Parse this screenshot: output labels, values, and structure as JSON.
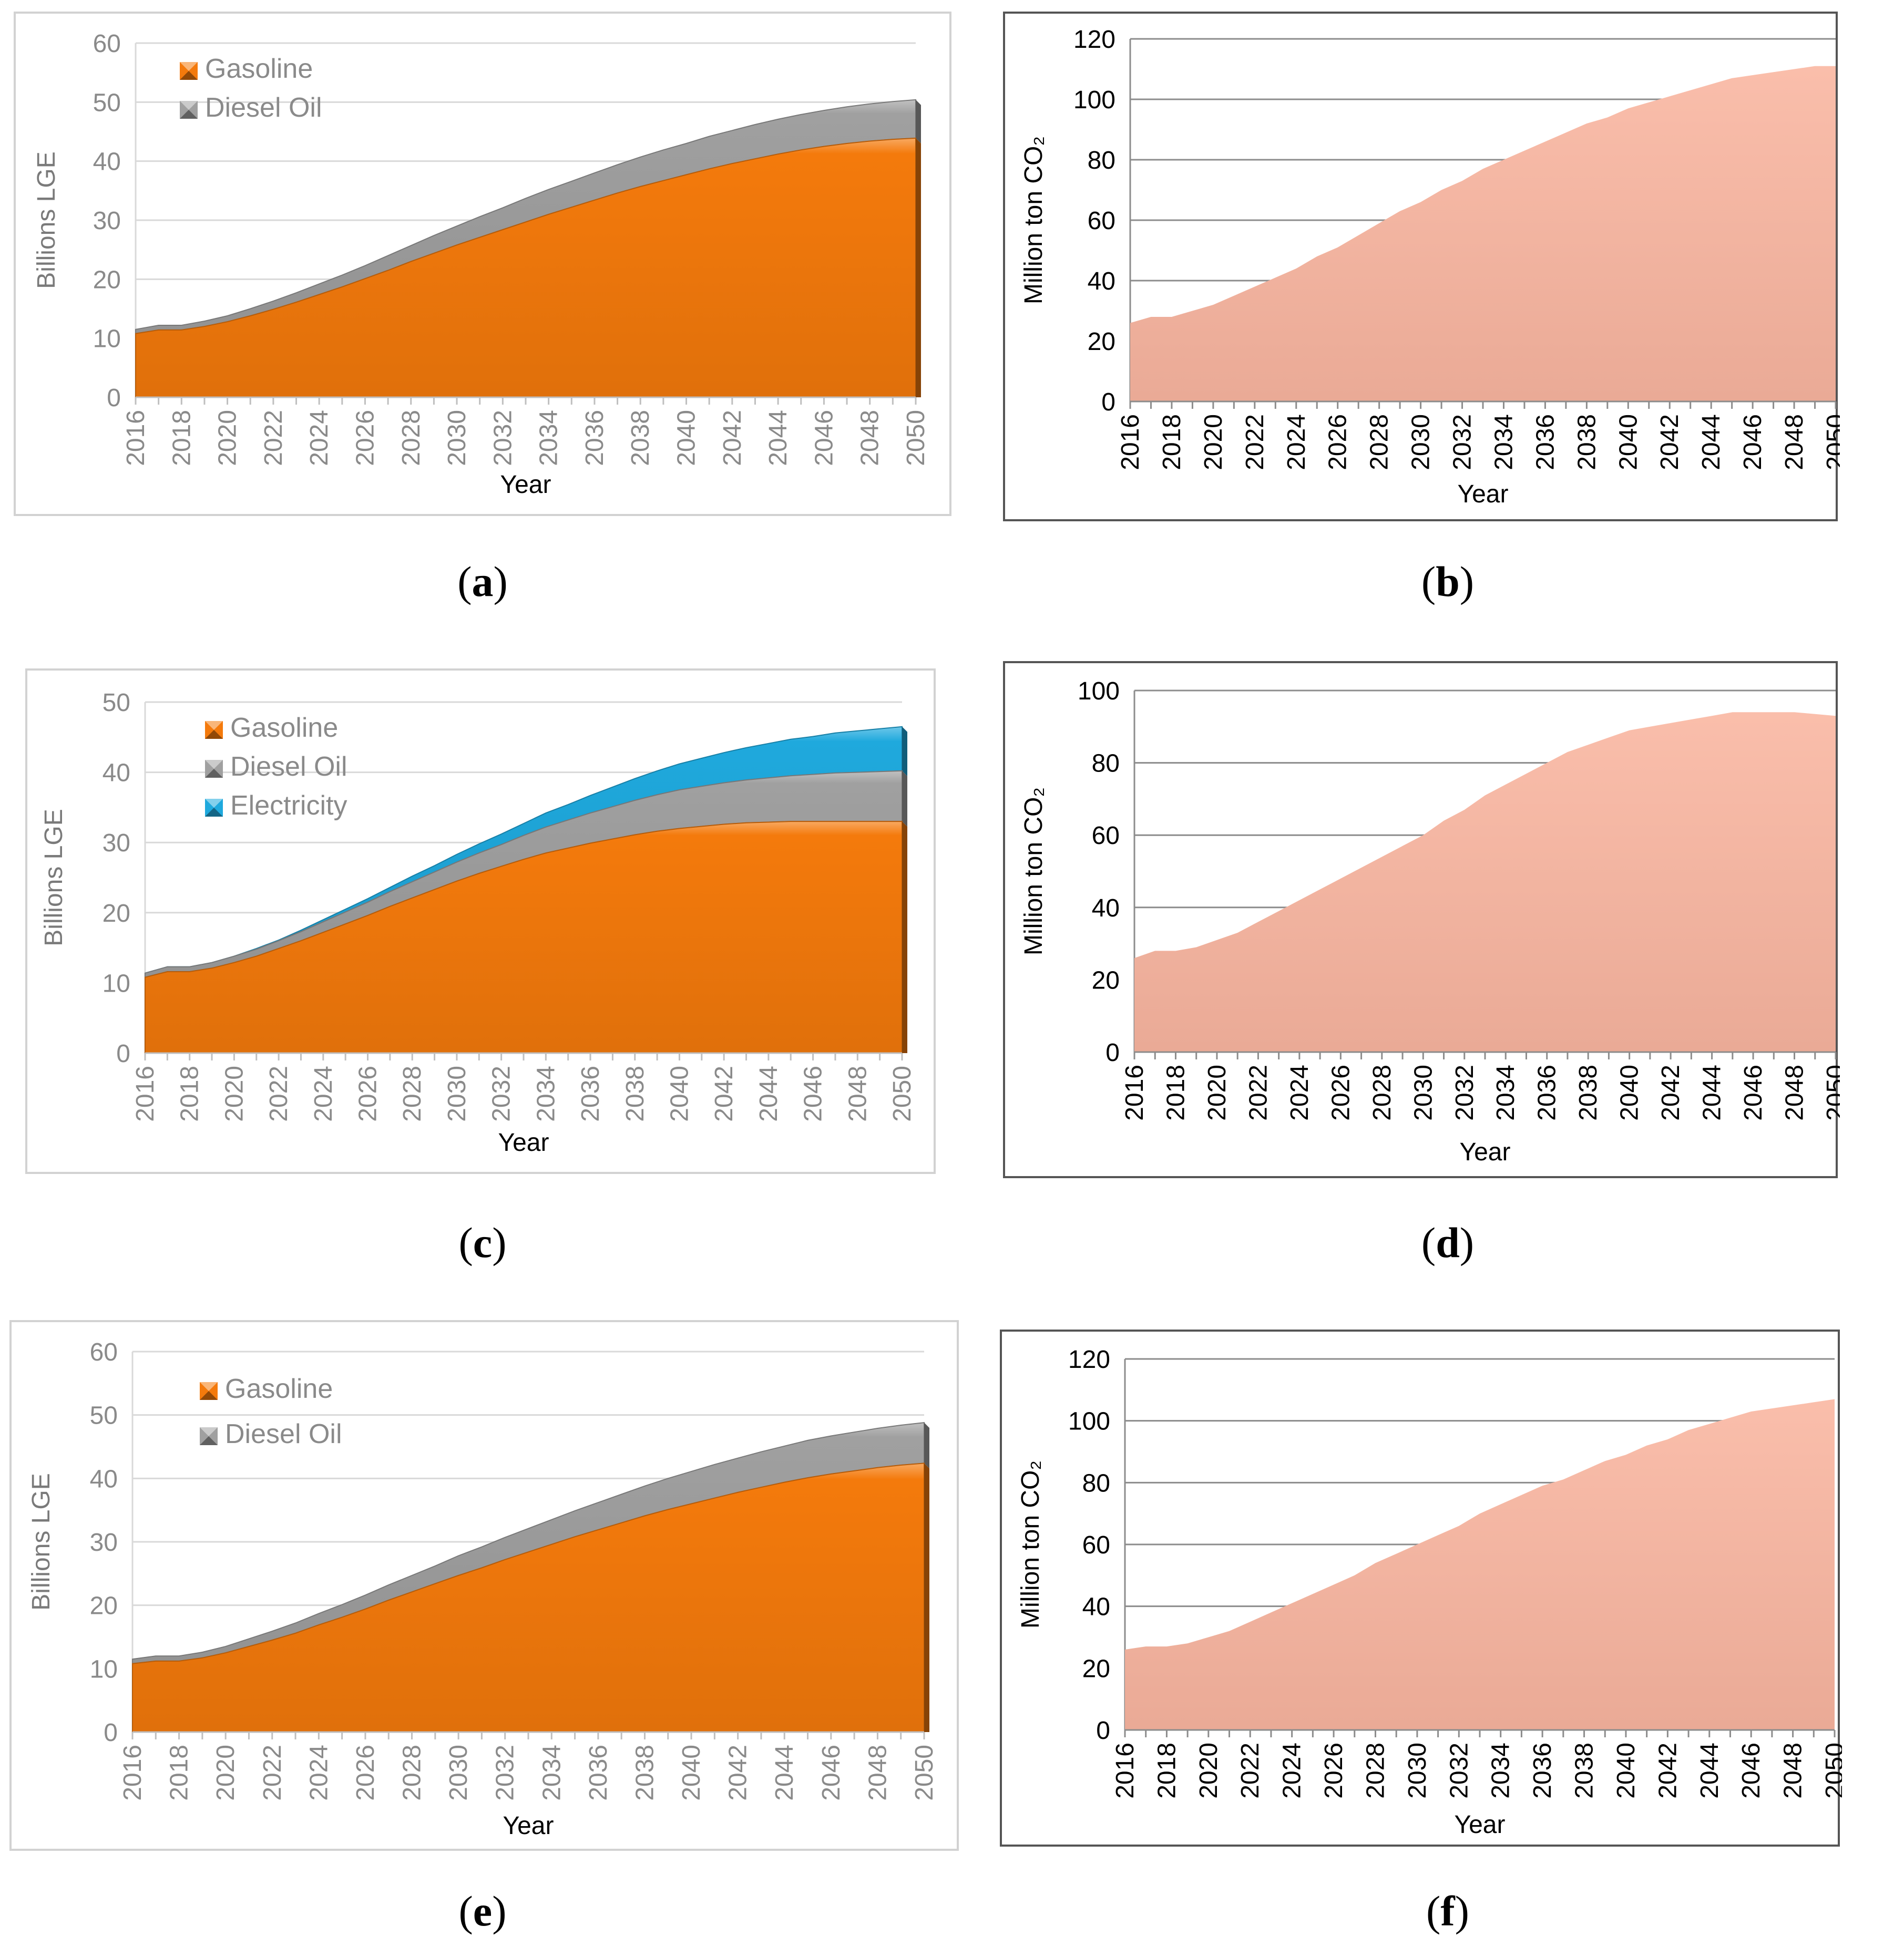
{
  "panels": [
    {
      "id": "a",
      "caption_letter": "a",
      "chart_data": {
        "type": "area",
        "stacked": true,
        "x": [
          2016,
          2017,
          2018,
          2019,
          2020,
          2021,
          2022,
          2023,
          2024,
          2025,
          2026,
          2027,
          2028,
          2029,
          2030,
          2031,
          2032,
          2033,
          2034,
          2035,
          2036,
          2037,
          2038,
          2039,
          2040,
          2041,
          2042,
          2043,
          2044,
          2045,
          2046,
          2047,
          2048,
          2049,
          2050
        ],
        "x_tick_labels": [
          "2016",
          "2018",
          "2020",
          "2022",
          "2024",
          "2026",
          "2028",
          "2030",
          "2032",
          "2034",
          "2036",
          "2038",
          "2040",
          "2042",
          "2044",
          "2046",
          "2048",
          "2050"
        ],
        "series": [
          {
            "name": "Gasoline",
            "color": "#f47a0c",
            "values": [
              10.8,
              11.4,
              11.4,
              12.0,
              12.8,
              13.8,
              14.9,
              16.1,
              17.4,
              18.7,
              20.1,
              21.5,
              23.0,
              24.4,
              25.8,
              27.1,
              28.4,
              29.7,
              31.0,
              32.2,
              33.4,
              34.6,
              35.7,
              36.7,
              37.7,
              38.7,
              39.6,
              40.4,
              41.2,
              41.9,
              42.5,
              43.0,
              43.4,
              43.7,
              43.9
            ]
          },
          {
            "name": "Diesel Oil",
            "color": "#a0a0a0",
            "values": [
              0.7,
              0.8,
              0.8,
              0.9,
              1.0,
              1.2,
              1.4,
              1.6,
              1.8,
              2.0,
              2.2,
              2.5,
              2.7,
              3.0,
              3.2,
              3.5,
              3.7,
              4.0,
              4.2,
              4.4,
              4.6,
              4.8,
              5.0,
              5.2,
              5.3,
              5.5,
              5.6,
              5.8,
              5.9,
              6.0,
              6.1,
              6.2,
              6.3,
              6.4,
              6.5
            ]
          }
        ],
        "ylabel": "Billions LGE",
        "xlabel": "Year",
        "ylim": [
          0,
          60
        ],
        "yticks": [
          0,
          10,
          20,
          30,
          40,
          50,
          60
        ],
        "grid": true,
        "legend_position": "top-left"
      }
    },
    {
      "id": "b",
      "caption_letter": "b",
      "chart_data": {
        "type": "area",
        "stacked": false,
        "x": [
          2016,
          2017,
          2018,
          2019,
          2020,
          2021,
          2022,
          2023,
          2024,
          2025,
          2026,
          2027,
          2028,
          2029,
          2030,
          2031,
          2032,
          2033,
          2034,
          2035,
          2036,
          2037,
          2038,
          2039,
          2040,
          2041,
          2042,
          2043,
          2044,
          2045,
          2046,
          2047,
          2048,
          2049,
          2050
        ],
        "x_tick_labels": [
          "2016",
          "2018",
          "2020",
          "2022",
          "2024",
          "2026",
          "2028",
          "2030",
          "2032",
          "2034",
          "2036",
          "2038",
          "2040",
          "2042",
          "2044",
          "2046",
          "2048",
          "2050"
        ],
        "series": [
          {
            "name": "CO2",
            "color": "#f9b5a0",
            "values": [
              26,
              28,
              28,
              30,
              32,
              35,
              38,
              41,
              44,
              48,
              51,
              55,
              59,
              63,
              66,
              70,
              73,
              77,
              80,
              83,
              86,
              89,
              92,
              94,
              97,
              99,
              101,
              103,
              105,
              107,
              108,
              109,
              110,
              111,
              111
            ]
          }
        ],
        "ylabel": "Million ton CO₂",
        "xlabel": "Year",
        "ylim": [
          0,
          120
        ],
        "yticks": [
          0,
          20,
          40,
          60,
          80,
          100,
          120
        ],
        "grid": true
      }
    },
    {
      "id": "c",
      "caption_letter": "c",
      "chart_data": {
        "type": "area",
        "stacked": true,
        "x": [
          2016,
          2017,
          2018,
          2019,
          2020,
          2021,
          2022,
          2023,
          2024,
          2025,
          2026,
          2027,
          2028,
          2029,
          2030,
          2031,
          2032,
          2033,
          2034,
          2035,
          2036,
          2037,
          2038,
          2039,
          2040,
          2041,
          2042,
          2043,
          2044,
          2045,
          2046,
          2047,
          2048,
          2049,
          2050
        ],
        "x_tick_labels": [
          "2016",
          "2018",
          "2020",
          "2022",
          "2024",
          "2026",
          "2028",
          "2030",
          "2032",
          "2034",
          "2036",
          "2038",
          "2040",
          "2042",
          "2044",
          "2046",
          "2048",
          "2050"
        ],
        "series": [
          {
            "name": "Gasoline",
            "color": "#f47a0c",
            "values": [
              10.8,
              11.6,
              11.6,
              12.1,
              12.9,
              13.8,
              14.9,
              16.0,
              17.2,
              18.4,
              19.6,
              20.9,
              22.1,
              23.3,
              24.5,
              25.6,
              26.6,
              27.6,
              28.5,
              29.2,
              29.9,
              30.5,
              31.1,
              31.6,
              32.0,
              32.3,
              32.6,
              32.8,
              32.9,
              33.0,
              33.0,
              33.0,
              33.0,
              33.0,
              33.0
            ]
          },
          {
            "name": "Diesel Oil",
            "color": "#a0a0a0",
            "values": [
              0.6,
              0.7,
              0.7,
              0.8,
              0.9,
              1.0,
              1.1,
              1.3,
              1.5,
              1.7,
              1.9,
              2.1,
              2.3,
              2.5,
              2.7,
              2.9,
              3.1,
              3.4,
              3.7,
              4.0,
              4.3,
              4.6,
              4.9,
              5.2,
              5.5,
              5.7,
              5.9,
              6.1,
              6.3,
              6.5,
              6.7,
              6.9,
              7.0,
              7.1,
              7.2
            ]
          },
          {
            "name": "Electricity",
            "color": "#1fa9dd",
            "values": [
              0,
              0,
              0,
              0,
              0,
              0.1,
              0.1,
              0.2,
              0.3,
              0.4,
              0.5,
              0.6,
              0.8,
              0.9,
              1.1,
              1.3,
              1.5,
              1.7,
              2.0,
              2.2,
              2.5,
              2.8,
              3.1,
              3.4,
              3.7,
              4.0,
              4.3,
              4.6,
              4.9,
              5.2,
              5.4,
              5.7,
              5.9,
              6.1,
              6.3
            ]
          }
        ],
        "ylabel": "Billions LGE",
        "xlabel": "Year",
        "ylim": [
          0,
          50
        ],
        "yticks": [
          0,
          10,
          20,
          30,
          40,
          50
        ],
        "grid": true,
        "legend_position": "top-left"
      }
    },
    {
      "id": "d",
      "caption_letter": "d",
      "chart_data": {
        "type": "area",
        "stacked": false,
        "x": [
          2016,
          2017,
          2018,
          2019,
          2020,
          2021,
          2022,
          2023,
          2024,
          2025,
          2026,
          2027,
          2028,
          2029,
          2030,
          2031,
          2032,
          2033,
          2034,
          2035,
          2036,
          2037,
          2038,
          2039,
          2040,
          2041,
          2042,
          2043,
          2044,
          2045,
          2046,
          2047,
          2048,
          2049,
          2050
        ],
        "x_tick_labels": [
          "2016",
          "2018",
          "2020",
          "2022",
          "2024",
          "2026",
          "2028",
          "2030",
          "2032",
          "2034",
          "2036",
          "2038",
          "2040",
          "2042",
          "2044",
          "2046",
          "2048",
          "2050"
        ],
        "series": [
          {
            "name": "CO2",
            "color": "#f9b5a0",
            "values": [
              26,
              28,
              28,
              29,
              31,
              33,
              36,
              39,
              42,
              45,
              48,
              51,
              54,
              57,
              60,
              64,
              67,
              71,
              74,
              77,
              80,
              83,
              85,
              87,
              89,
              90,
              91,
              92,
              93,
              94,
              94,
              94,
              94,
              93.5,
              93
            ]
          }
        ],
        "ylabel": "Million ton CO₂",
        "xlabel": "Year",
        "ylim": [
          0,
          100
        ],
        "yticks": [
          0,
          20,
          40,
          60,
          80,
          100
        ],
        "grid": true
      }
    },
    {
      "id": "e",
      "caption_letter": "e",
      "chart_data": {
        "type": "area",
        "stacked": true,
        "x": [
          2016,
          2017,
          2018,
          2019,
          2020,
          2021,
          2022,
          2023,
          2024,
          2025,
          2026,
          2027,
          2028,
          2029,
          2030,
          2031,
          2032,
          2033,
          2034,
          2035,
          2036,
          2037,
          2038,
          2039,
          2040,
          2041,
          2042,
          2043,
          2044,
          2045,
          2046,
          2047,
          2048,
          2049,
          2050
        ],
        "x_tick_labels": [
          "2016",
          "2018",
          "2020",
          "2022",
          "2024",
          "2026",
          "2028",
          "2030",
          "2032",
          "2034",
          "2036",
          "2038",
          "2040",
          "2042",
          "2044",
          "2046",
          "2048",
          "2050"
        ],
        "series": [
          {
            "name": "Gasoline",
            "color": "#f47a0c",
            "values": [
              10.8,
              11.2,
              11.2,
              11.7,
              12.5,
              13.5,
              14.5,
              15.6,
              16.9,
              18.1,
              19.4,
              20.8,
              22.1,
              23.4,
              24.7,
              25.9,
              27.2,
              28.4,
              29.6,
              30.8,
              31.9,
              33.0,
              34.1,
              35.1,
              36.0,
              36.9,
              37.8,
              38.6,
              39.4,
              40.1,
              40.7,
              41.2,
              41.7,
              42.1,
              42.4
            ]
          },
          {
            "name": "Diesel Oil",
            "color": "#a0a0a0",
            "values": [
              0.7,
              0.8,
              0.8,
              0.9,
              1.0,
              1.2,
              1.4,
              1.6,
              1.8,
              2.0,
              2.2,
              2.4,
              2.6,
              2.8,
              3.1,
              3.3,
              3.5,
              3.7,
              3.9,
              4.1,
              4.3,
              4.5,
              4.7,
              4.9,
              5.1,
              5.3,
              5.4,
              5.6,
              5.7,
              5.9,
              6.0,
              6.1,
              6.2,
              6.3,
              6.4
            ]
          }
        ],
        "ylabel": "Billions LGE",
        "xlabel": "Year",
        "ylim": [
          0,
          60
        ],
        "yticks": [
          0,
          10,
          20,
          30,
          40,
          50,
          60
        ],
        "grid": true,
        "legend_position": "top-left"
      }
    },
    {
      "id": "f",
      "caption_letter": "f",
      "chart_data": {
        "type": "area",
        "stacked": false,
        "x": [
          2016,
          2017,
          2018,
          2019,
          2020,
          2021,
          2022,
          2023,
          2024,
          2025,
          2026,
          2027,
          2028,
          2029,
          2030,
          2031,
          2032,
          2033,
          2034,
          2035,
          2036,
          2037,
          2038,
          2039,
          2040,
          2041,
          2042,
          2043,
          2044,
          2045,
          2046,
          2047,
          2048,
          2049,
          2050
        ],
        "x_tick_labels": [
          "2016",
          "2018",
          "2020",
          "2022",
          "2024",
          "2026",
          "2028",
          "2030",
          "2032",
          "2034",
          "2036",
          "2038",
          "2040",
          "2042",
          "2044",
          "2046",
          "2048",
          "2050"
        ],
        "series": [
          {
            "name": "CO2",
            "color": "#f9b5a0",
            "values": [
              26,
              27,
              27,
              28,
              30,
              32,
              35,
              38,
              41,
              44,
              47,
              50,
              54,
              57,
              60,
              63,
              66,
              70,
              73,
              76,
              79,
              81,
              84,
              87,
              89,
              92,
              94,
              97,
              99,
              101,
              103,
              104,
              105,
              106,
              107
            ]
          }
        ],
        "ylabel": "Million ton CO₂",
        "xlabel": "Year",
        "ylim": [
          0,
          120
        ],
        "yticks": [
          0,
          20,
          40,
          60,
          80,
          100,
          120
        ],
        "grid": true
      }
    }
  ]
}
